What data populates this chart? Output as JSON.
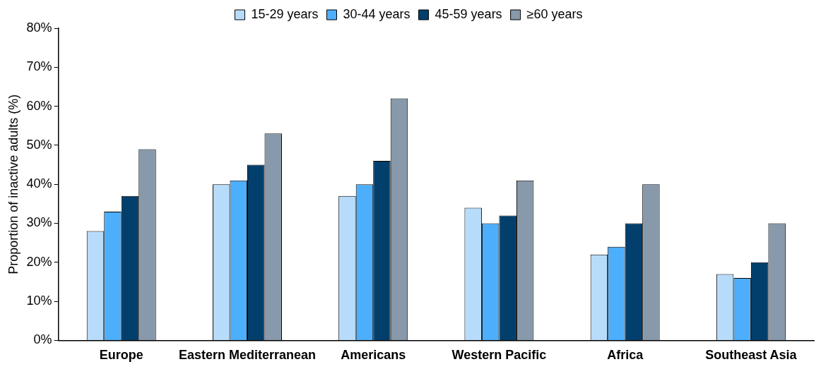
{
  "chart_data": {
    "type": "bar",
    "ylabel": "Proportion of inactive adults (%)",
    "categories": [
      "Europe",
      "Eastern Mediterranean",
      "Americans",
      "Western Pacific",
      "Africa",
      "Southeast Asia"
    ],
    "series": [
      {
        "name": "15-29 years",
        "color": "#b7dcfb",
        "values": [
          28,
          40,
          37,
          34,
          22,
          17
        ]
      },
      {
        "name": "30-44 years",
        "color": "#4daefc",
        "values": [
          33,
          41,
          40,
          30,
          24,
          16
        ]
      },
      {
        "name": "45-59 years",
        "color": "#023f6c",
        "values": [
          37,
          45,
          46,
          32,
          30,
          20
        ]
      },
      {
        "name": "≥60 years",
        "color": "#8799aa",
        "values": [
          49,
          53,
          62,
          41,
          40,
          30
        ]
      }
    ],
    "ylim": [
      0,
      80
    ],
    "yticks": [
      {
        "value": 0,
        "label": "0%"
      },
      {
        "value": 10,
        "label": "10%"
      },
      {
        "value": 20,
        "label": "20%"
      },
      {
        "value": 30,
        "label": "30%"
      },
      {
        "value": 40,
        "label": "40%"
      },
      {
        "value": 50,
        "label": "50%"
      },
      {
        "value": 60,
        "label": "60%"
      },
      {
        "value": 70,
        "label": "70%"
      },
      {
        "value": 80,
        "label": "80%"
      }
    ],
    "grid": false,
    "legend": "top"
  }
}
